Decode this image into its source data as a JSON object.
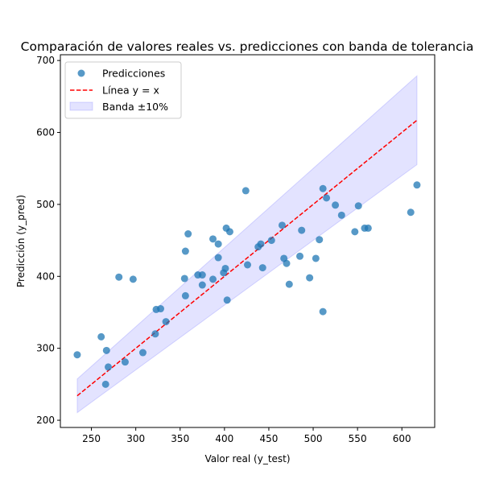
{
  "chart_data": {
    "type": "scatter",
    "title": "Comparación de valores reales vs. predicciones con banda de tolerancia",
    "xlabel": "Valor real (y_test)",
    "ylabel": "Predicción (y_pred)",
    "xlim": [
      215,
      637
    ],
    "ylim": [
      190,
      708
    ],
    "xticks": [
      250,
      300,
      350,
      400,
      450,
      500,
      550,
      600
    ],
    "yticks": [
      200,
      300,
      400,
      500,
      600,
      700
    ],
    "grid": false,
    "legend_position": "top-left",
    "legend": [
      {
        "key": "points",
        "label": "Predicciones"
      },
      {
        "key": "line",
        "label": "Línea y = x"
      },
      {
        "key": "band",
        "label": "Banda ±10%"
      }
    ],
    "colors": {
      "points": "#1f77b4",
      "line": "#ff0000",
      "band": "#0000ff"
    },
    "band": {
      "factor": 0.1,
      "x_range": [
        234,
        617
      ]
    },
    "identity_line": {
      "x_range": [
        234,
        617
      ]
    },
    "series": [
      {
        "name": "Predicciones",
        "points": [
          [
            234,
            291
          ],
          [
            261,
            316
          ],
          [
            266,
            250
          ],
          [
            267,
            297
          ],
          [
            269,
            274
          ],
          [
            281,
            399
          ],
          [
            288,
            281
          ],
          [
            297,
            396
          ],
          [
            308,
            294
          ],
          [
            322,
            320
          ],
          [
            323,
            354
          ],
          [
            328,
            355
          ],
          [
            334,
            337
          ],
          [
            355,
            397
          ],
          [
            356,
            435
          ],
          [
            356,
            373
          ],
          [
            359,
            459
          ],
          [
            370,
            402
          ],
          [
            375,
            388
          ],
          [
            375,
            402
          ],
          [
            387,
            396
          ],
          [
            387,
            452
          ],
          [
            393,
            426
          ],
          [
            393,
            445
          ],
          [
            399,
            405
          ],
          [
            401,
            411
          ],
          [
            402,
            467
          ],
          [
            403,
            367
          ],
          [
            406,
            462
          ],
          [
            424,
            519
          ],
          [
            426,
            416
          ],
          [
            438,
            441
          ],
          [
            441,
            445
          ],
          [
            443,
            412
          ],
          [
            453,
            450
          ],
          [
            465,
            471
          ],
          [
            467,
            425
          ],
          [
            470,
            418
          ],
          [
            473,
            389
          ],
          [
            485,
            428
          ],
          [
            487,
            464
          ],
          [
            496,
            398
          ],
          [
            503,
            425
          ],
          [
            507,
            451
          ],
          [
            511,
            522
          ],
          [
            511,
            351
          ],
          [
            515,
            509
          ],
          [
            525,
            499
          ],
          [
            532,
            485
          ],
          [
            547,
            462
          ],
          [
            551,
            498
          ],
          [
            558,
            467
          ],
          [
            562,
            467
          ],
          [
            610,
            489
          ],
          [
            617,
            527
          ]
        ]
      }
    ]
  }
}
